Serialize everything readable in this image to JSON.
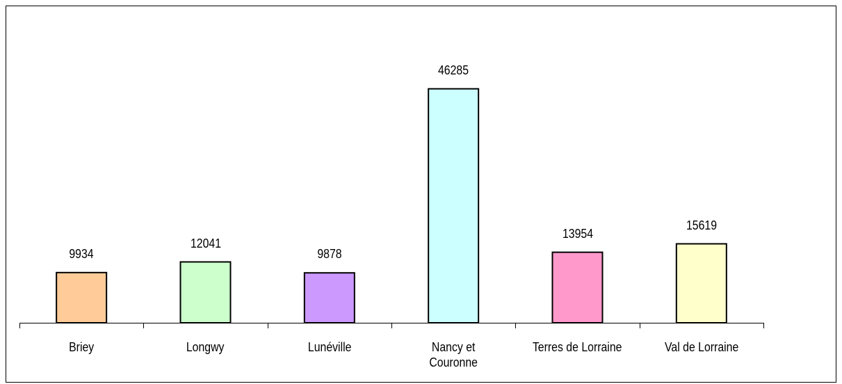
{
  "chart_data": {
    "type": "bar",
    "categories": [
      "Briey",
      "Longwy",
      "Lunéville",
      "Nancy et\nCouronne",
      "Terres de Lorraine",
      "Val de Lorraine"
    ],
    "values": [
      9934,
      12041,
      9878,
      46285,
      13954,
      15619
    ],
    "colors": [
      "#ffcc99",
      "#ccffcc",
      "#cc99ff",
      "#ccffff",
      "#ff99cc",
      "#ffffcc"
    ],
    "ylim": [
      0,
      60000
    ]
  }
}
